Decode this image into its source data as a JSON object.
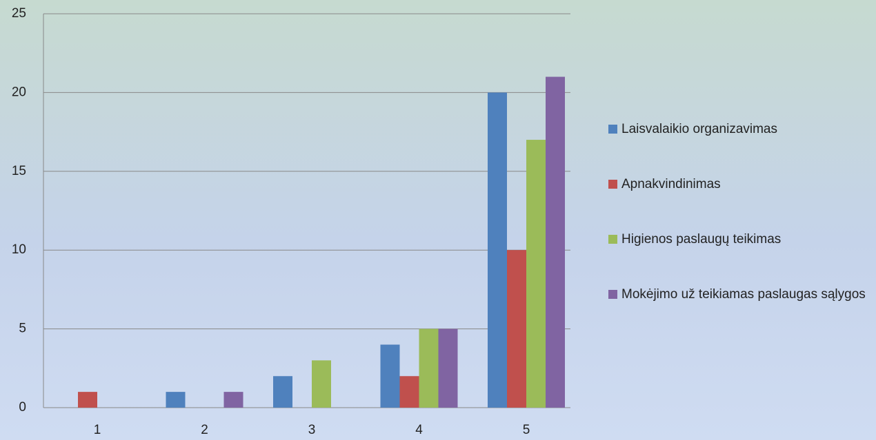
{
  "chart_data": {
    "type": "bar",
    "categories": [
      "1",
      "2",
      "3",
      "4",
      "5"
    ],
    "series": [
      {
        "name": "Laisvalaikio organizavimas",
        "color": "#4f81bd",
        "values": [
          0,
          1,
          2,
          4,
          20
        ]
      },
      {
        "name": "Apnakvindinimas",
        "color": "#c0504d",
        "values": [
          1,
          0,
          0,
          2,
          10
        ]
      },
      {
        "name": "Higienos paslaugų teikimas",
        "color": "#9bbb59",
        "values": [
          0,
          0,
          3,
          5,
          17
        ]
      },
      {
        "name": "Mokėjimo už teikiamas paslaugas sąlygos",
        "color": "#8064a2",
        "values": [
          0,
          1,
          0,
          5,
          21
        ]
      }
    ],
    "ylim": [
      0,
      25
    ],
    "yticks": [
      0,
      5,
      10,
      15,
      20,
      25
    ],
    "grid": true,
    "legend": "right"
  }
}
